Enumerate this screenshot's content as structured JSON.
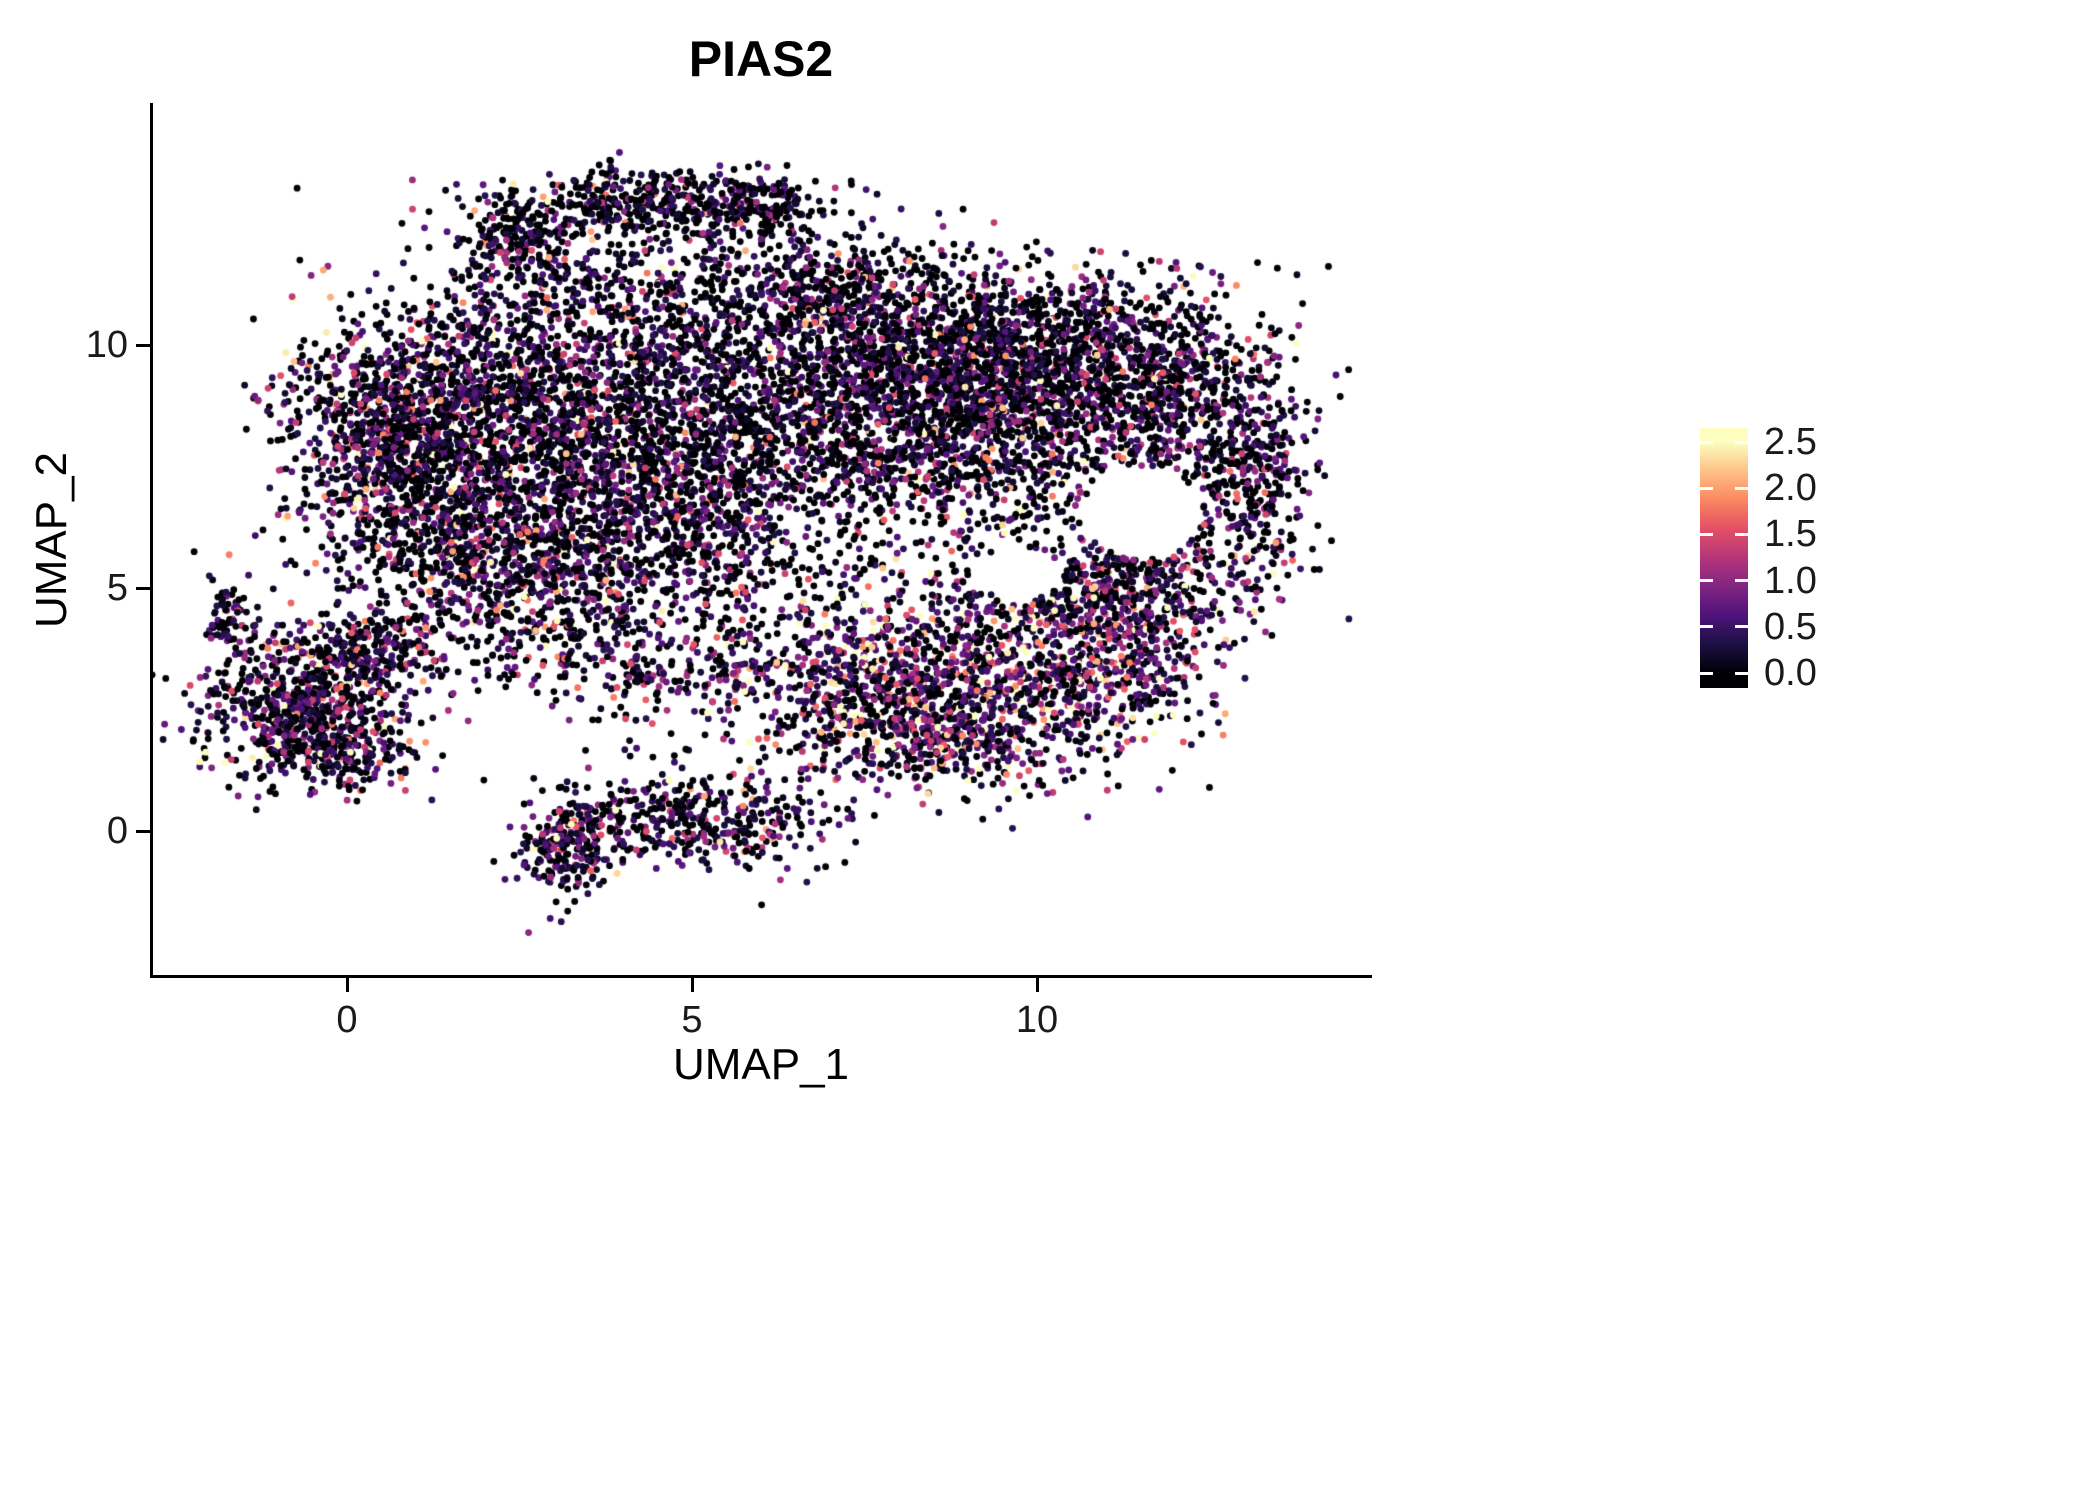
{
  "chart_data": {
    "type": "scatter",
    "title": "PIAS2",
    "xlabel": "UMAP_1",
    "ylabel": "UMAP_2",
    "xlim": [
      -2.8,
      14.8
    ],
    "ylim": [
      -3.0,
      14.9
    ],
    "x_ticks": [
      "0",
      "5",
      "10"
    ],
    "x_tick_values": [
      0,
      5,
      10
    ],
    "y_ticks": [
      "0",
      "5",
      "10"
    ],
    "y_tick_values": [
      0,
      5,
      10
    ],
    "grid": false,
    "legend_position": "right",
    "colorbar": {
      "tick_labels": [
        "2.5",
        "2.0",
        "1.5",
        "1.0",
        "0.5",
        "0.0"
      ],
      "tick_values": [
        2.5,
        2.0,
        1.5,
        1.0,
        0.5,
        0.0
      ],
      "vmin": 0.0,
      "vmax": 2.5,
      "colormap": "magma",
      "stops": [
        "#000004",
        "#1c1044",
        "#4f127b",
        "#812581",
        "#b5367a",
        "#e55064",
        "#fb8761",
        "#fec287",
        "#fcfdbf"
      ]
    },
    "point_radius_px": 3.4,
    "n_points_approx": 14770,
    "point_seed": 42,
    "clusters": [
      {
        "x": 2.6,
        "y": 12.2,
        "sx": 0.55,
        "sy": 0.5,
        "n": 240,
        "p0": 0.45,
        "mean": 0.5
      },
      {
        "x": 4.3,
        "y": 13.0,
        "sx": 0.9,
        "sy": 0.3,
        "n": 300,
        "p0": 0.45,
        "mean": 0.5
      },
      {
        "x": 5.9,
        "y": 12.8,
        "sx": 0.7,
        "sy": 0.35,
        "n": 200,
        "p0": 0.45,
        "mean": 0.5
      },
      {
        "x": 4.5,
        "y": 10.9,
        "sx": 1.3,
        "sy": 0.8,
        "n": 420,
        "p0": 0.4,
        "mean": 0.55
      },
      {
        "x": 6.9,
        "y": 11.2,
        "sx": 1.0,
        "sy": 0.6,
        "n": 320,
        "p0": 0.4,
        "mean": 0.55
      },
      {
        "x": 8.2,
        "y": 9.5,
        "sx": 1.3,
        "sy": 1.0,
        "n": 1250,
        "p0": 0.4,
        "mean": 0.55
      },
      {
        "x": 10.3,
        "y": 9.8,
        "sx": 1.2,
        "sy": 0.9,
        "n": 950,
        "p0": 0.4,
        "mean": 0.55
      },
      {
        "x": 9.0,
        "y": 7.8,
        "sx": 1.5,
        "sy": 0.9,
        "n": 850,
        "p0": 0.4,
        "mean": 0.6
      },
      {
        "x": 12.3,
        "y": 8.4,
        "sx": 0.8,
        "sy": 1.2,
        "n": 600,
        "p0": 0.42,
        "mean": 0.55
      },
      {
        "x": 13.2,
        "y": 7.1,
        "sx": 0.35,
        "sy": 0.8,
        "n": 190,
        "p0": 0.42,
        "mean": 0.55
      },
      {
        "x": 11.6,
        "y": 5.3,
        "sx": 1.0,
        "sy": 0.55,
        "n": 330,
        "p0": 0.35,
        "mean": 0.7
      },
      {
        "x": 0.6,
        "y": 8.3,
        "sx": 0.8,
        "sy": 1.2,
        "n": 850,
        "p0": 0.33,
        "mean": 0.65
      },
      {
        "x": 2.2,
        "y": 8.8,
        "sx": 1.1,
        "sy": 1.1,
        "n": 950,
        "p0": 0.35,
        "mean": 0.6
      },
      {
        "x": 3.5,
        "y": 7.2,
        "sx": 1.3,
        "sy": 1.2,
        "n": 850,
        "p0": 0.35,
        "mean": 0.6
      },
      {
        "x": 1.6,
        "y": 6.0,
        "sx": 1.0,
        "sy": 0.8,
        "n": 500,
        "p0": 0.35,
        "mean": 0.6
      },
      {
        "x": 4.8,
        "y": 8.9,
        "sx": 1.0,
        "sy": 1.0,
        "n": 480,
        "p0": 0.38,
        "mean": 0.55
      },
      {
        "x": 2.8,
        "y": 5.1,
        "sx": 1.4,
        "sy": 0.6,
        "n": 280,
        "p0": 0.3,
        "mean": 0.7
      },
      {
        "x": 5.6,
        "y": 7.0,
        "sx": 0.9,
        "sy": 1.3,
        "n": 420,
        "p0": 0.38,
        "mean": 0.55
      },
      {
        "x": 2.6,
        "y": 3.9,
        "sx": 1.0,
        "sy": 0.5,
        "n": 150,
        "p0": 0.3,
        "mean": 0.75
      },
      {
        "x": 4.6,
        "y": 3.3,
        "sx": 1.1,
        "sy": 0.6,
        "n": 160,
        "p0": 0.3,
        "mean": 0.75
      },
      {
        "x": 7.5,
        "y": 3.2,
        "sx": 1.2,
        "sy": 0.8,
        "n": 520,
        "p0": 0.22,
        "mean": 0.85
      },
      {
        "x": 9.5,
        "y": 2.8,
        "sx": 1.2,
        "sy": 0.9,
        "n": 650,
        "p0": 0.22,
        "mean": 0.85
      },
      {
        "x": 11.0,
        "y": 3.6,
        "sx": 0.8,
        "sy": 0.8,
        "n": 380,
        "p0": 0.25,
        "mean": 0.8
      },
      {
        "x": 8.3,
        "y": 1.8,
        "sx": 1.0,
        "sy": 0.5,
        "n": 260,
        "p0": 0.25,
        "mean": 0.8
      },
      {
        "x": 10.3,
        "y": 4.6,
        "sx": 1.3,
        "sy": 0.45,
        "n": 260,
        "p0": 0.28,
        "mean": 0.8
      },
      {
        "x": -0.6,
        "y": 2.6,
        "sx": 0.75,
        "sy": 0.75,
        "n": 640,
        "p0": 0.3,
        "mean": 0.7
      },
      {
        "x": 0.3,
        "y": 3.7,
        "sx": 0.6,
        "sy": 0.5,
        "n": 230,
        "p0": 0.3,
        "mean": 0.7
      },
      {
        "x": -1.7,
        "y": 4.4,
        "sx": 0.2,
        "sy": 0.4,
        "n": 70,
        "p0": 0.35,
        "mean": 0.6
      },
      {
        "x": -0.3,
        "y": 1.6,
        "sx": 0.7,
        "sy": 0.35,
        "n": 190,
        "p0": 0.3,
        "mean": 0.7
      },
      {
        "x": 3.2,
        "y": -0.3,
        "sx": 0.35,
        "sy": 0.5,
        "n": 220,
        "p0": 0.35,
        "mean": 0.65
      },
      {
        "x": 4.4,
        "y": 0.3,
        "sx": 0.7,
        "sy": 0.4,
        "n": 190,
        "p0": 0.35,
        "mean": 0.65
      },
      {
        "x": 5.6,
        "y": 0.1,
        "sx": 0.8,
        "sy": 0.45,
        "n": 210,
        "p0": 0.35,
        "mean": 0.65
      },
      {
        "x": 6.5,
        "y": 8.0,
        "sx": 3.0,
        "sy": 2.0,
        "n": 380,
        "p0": 0.4,
        "mean": 0.55
      },
      {
        "x": 6.2,
        "y": 5.3,
        "sx": 2.4,
        "sy": 0.9,
        "n": 220,
        "p0": 0.35,
        "mean": 0.65
      },
      {
        "x": 5.8,
        "y": 1.2,
        "sx": 1.8,
        "sy": 0.8,
        "n": 60,
        "p0": 0.35,
        "mean": 0.65
      }
    ],
    "holes": [
      {
        "x": 11.55,
        "y": 6.55,
        "rx": 0.85,
        "ry": 0.95
      },
      {
        "x": 9.7,
        "y": 5.3,
        "rx": 0.7,
        "ry": 0.5
      }
    ]
  }
}
